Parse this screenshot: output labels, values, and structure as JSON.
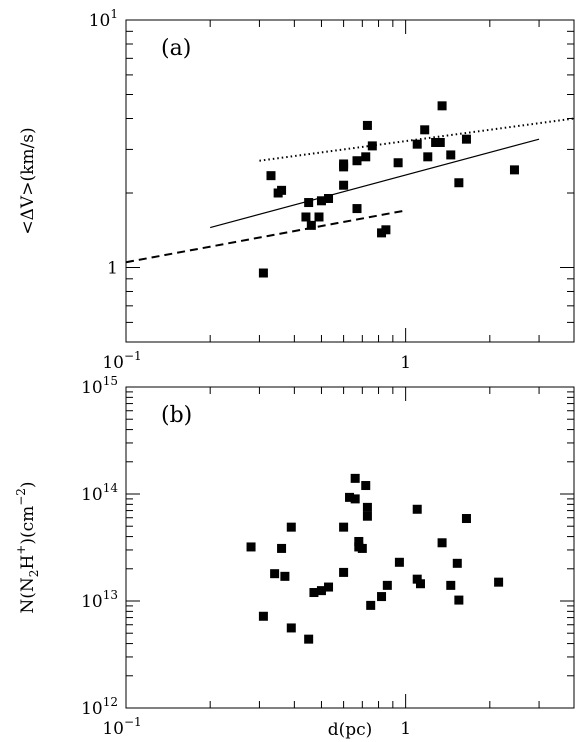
{
  "chart_data": [
    {
      "type": "scatter",
      "panel_label": "(a)",
      "xscale": "log",
      "yscale": "log",
      "xlim": [
        0.1,
        4
      ],
      "ylim": [
        0.5,
        10
      ],
      "ylabel": "<ΔV>(km/s)",
      "xlabel": "",
      "x_tick_labels": [
        {
          "value": 0.1,
          "base": "10",
          "exp": "−1"
        },
        {
          "value": 1,
          "base": "1",
          "exp": ""
        }
      ],
      "y_tick_labels": [
        {
          "value": 1,
          "base": "1",
          "exp": ""
        },
        {
          "value": 10,
          "base": "10",
          "exp": "1"
        }
      ],
      "points": [
        [
          0.31,
          0.95
        ],
        [
          0.33,
          2.35
        ],
        [
          0.35,
          2.0
        ],
        [
          0.36,
          2.05
        ],
        [
          0.44,
          1.6
        ],
        [
          0.45,
          1.83
        ],
        [
          0.46,
          1.48
        ],
        [
          0.49,
          1.6
        ],
        [
          0.5,
          1.86
        ],
        [
          0.53,
          1.9
        ],
        [
          0.6,
          2.55
        ],
        [
          0.6,
          2.15
        ],
        [
          0.6,
          2.62
        ],
        [
          0.67,
          1.73
        ],
        [
          0.67,
          2.7
        ],
        [
          0.72,
          2.8
        ],
        [
          0.73,
          3.75
        ],
        [
          0.76,
          3.1
        ],
        [
          0.82,
          1.38
        ],
        [
          0.85,
          1.42
        ],
        [
          0.94,
          2.65
        ],
        [
          1.1,
          3.15
        ],
        [
          1.17,
          3.6
        ],
        [
          1.2,
          2.8
        ],
        [
          1.28,
          3.2
        ],
        [
          1.33,
          3.2
        ],
        [
          1.35,
          4.5
        ],
        [
          1.45,
          2.85
        ],
        [
          1.55,
          2.2
        ],
        [
          1.65,
          3.3
        ],
        [
          2.45,
          2.48
        ]
      ],
      "lines": [
        {
          "style": "solid",
          "x": [
            0.2,
            3.0
          ],
          "y": [
            1.45,
            3.3
          ]
        },
        {
          "style": "dotted",
          "x": [
            0.3,
            4.0
          ],
          "y": [
            2.7,
            4.0
          ]
        },
        {
          "style": "dashed",
          "x": [
            0.1,
            1.0
          ],
          "y": [
            1.05,
            1.7
          ]
        }
      ]
    },
    {
      "type": "scatter",
      "panel_label": "(b)",
      "xscale": "log",
      "yscale": "log",
      "xlim": [
        0.1,
        4
      ],
      "ylim": [
        1000000000000.0,
        1000000000000000.0
      ],
      "xlabel": "d(pc)",
      "ylabel": "N(N2H+)(cm−2)",
      "x_tick_labels": [
        {
          "value": 0.1,
          "base": "10",
          "exp": "−1"
        },
        {
          "value": 1,
          "base": "1",
          "exp": ""
        }
      ],
      "y_tick_labels": [
        {
          "value": 1000000000000.0,
          "base": "10",
          "exp": "12"
        },
        {
          "value": 10000000000000.0,
          "base": "10",
          "exp": "13"
        },
        {
          "value": 100000000000000.0,
          "base": "10",
          "exp": "14"
        },
        {
          "value": 1000000000000000.0,
          "base": "10",
          "exp": "15"
        }
      ],
      "points": [
        [
          0.28,
          32000000000000.0
        ],
        [
          0.31,
          7200000000000.0
        ],
        [
          0.34,
          18000000000000.0
        ],
        [
          0.36,
          31000000000000.0
        ],
        [
          0.37,
          17000000000000.0
        ],
        [
          0.39,
          49000000000000.0
        ],
        [
          0.39,
          5600000000000.0
        ],
        [
          0.45,
          4400000000000.0
        ],
        [
          0.47,
          12000000000000.0
        ],
        [
          0.5,
          12500000000000.0
        ],
        [
          0.53,
          13500000000000.0
        ],
        [
          0.6,
          18500000000000.0
        ],
        [
          0.6,
          49000000000000.0
        ],
        [
          0.63,
          93000000000000.0
        ],
        [
          0.66,
          90000000000000.0
        ],
        [
          0.66,
          140000000000000.0
        ],
        [
          0.68,
          32000000000000.0
        ],
        [
          0.68,
          36000000000000.0
        ],
        [
          0.7,
          31000000000000.0
        ],
        [
          0.72,
          120000000000000.0
        ],
        [
          0.73,
          75000000000000.0
        ],
        [
          0.73,
          62000000000000.0
        ],
        [
          0.75,
          9100000000000.0
        ],
        [
          0.82,
          11000000000000.0
        ],
        [
          0.86,
          14000000000000.0
        ],
        [
          0.95,
          23000000000000.0
        ],
        [
          1.1,
          72000000000000.0
        ],
        [
          1.1,
          16000000000000.0
        ],
        [
          1.13,
          14500000000000.0
        ],
        [
          1.35,
          35000000000000.0
        ],
        [
          1.45,
          14000000000000.0
        ],
        [
          1.53,
          22500000000000.0
        ],
        [
          1.55,
          10200000000000.0
        ],
        [
          1.65,
          59000000000000.0
        ],
        [
          2.15,
          15000000000000.0
        ]
      ]
    }
  ]
}
